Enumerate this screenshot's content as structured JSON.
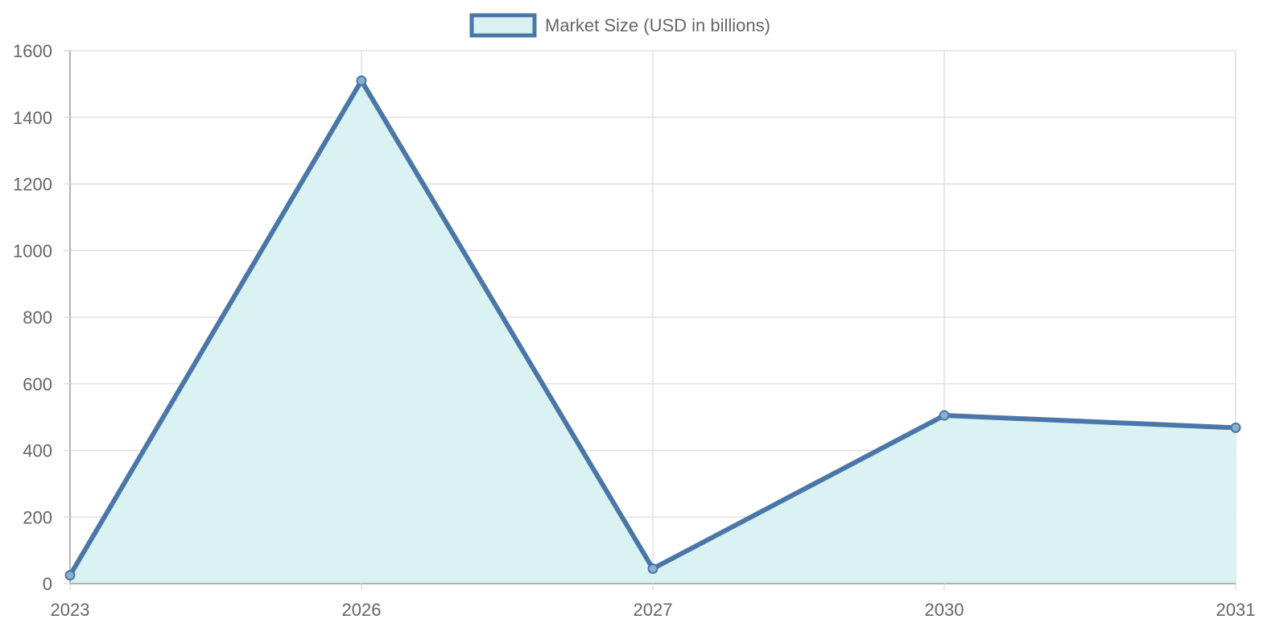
{
  "chart_data": {
    "type": "area",
    "x": [
      "2023",
      "2026",
      "2027",
      "2030",
      "2031"
    ],
    "series": [
      {
        "name": "Market Size (USD in billions)",
        "values": [
          25,
          1510,
          45,
          505,
          468
        ]
      }
    ],
    "xlabel": "",
    "ylabel": "",
    "ylim": [
      0,
      1600
    ],
    "yticks": [
      "0",
      "200",
      "400",
      "600",
      "800",
      "1000",
      "1200",
      "1400",
      "1600"
    ],
    "grid": true,
    "legend_position": "top-center",
    "colors": {
      "line": "#4a76a8",
      "fill": "#d9f1f2",
      "grid": "#e0e0e0",
      "axis": "#999999",
      "text": "#666666"
    }
  }
}
